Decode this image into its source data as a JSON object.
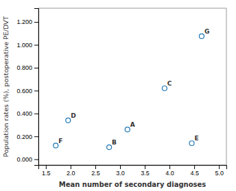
{
  "chart_data": {
    "type": "scatter",
    "x_label": "Mean number of secondary diagnoses",
    "y_label": "Population rates (%), postoperative PE/DVT",
    "labels": [
      "F",
      "D",
      "B",
      "A",
      "C",
      "E",
      "G"
    ],
    "x": [
      1.7,
      1.95,
      2.78,
      3.15,
      3.9,
      4.45,
      4.65
    ],
    "values": [
      0.12,
      0.34,
      0.105,
      0.26,
      0.62,
      0.14,
      1.075
    ],
    "xlim": [
      1.35,
      5.15
    ],
    "ylim": [
      -0.05,
      1.32
    ],
    "xticks": [
      1.5,
      {
        "value": 2.0,
        "label": "2.0"
      },
      2.5,
      {
        "value": 3.0,
        "label": "3.0"
      },
      3.5,
      {
        "value": 4.0,
        "label": "4.0"
      },
      4.5,
      {
        "value": 5.0,
        "label": "5.0"
      }
    ],
    "yticks": [
      {
        "value": 0.0,
        "label": "0.000"
      },
      {
        "value": 0.2,
        "label": "0.200"
      },
      {
        "value": 0.4,
        "label": "0.400"
      },
      {
        "value": 0.6,
        "label": "0.600"
      },
      {
        "value": 0.8,
        "label": "0.800"
      },
      {
        "value": 1.0,
        "label": "1.000"
      },
      {
        "value": 1.2,
        "label": "1.200"
      }
    ],
    "grid": false
  }
}
